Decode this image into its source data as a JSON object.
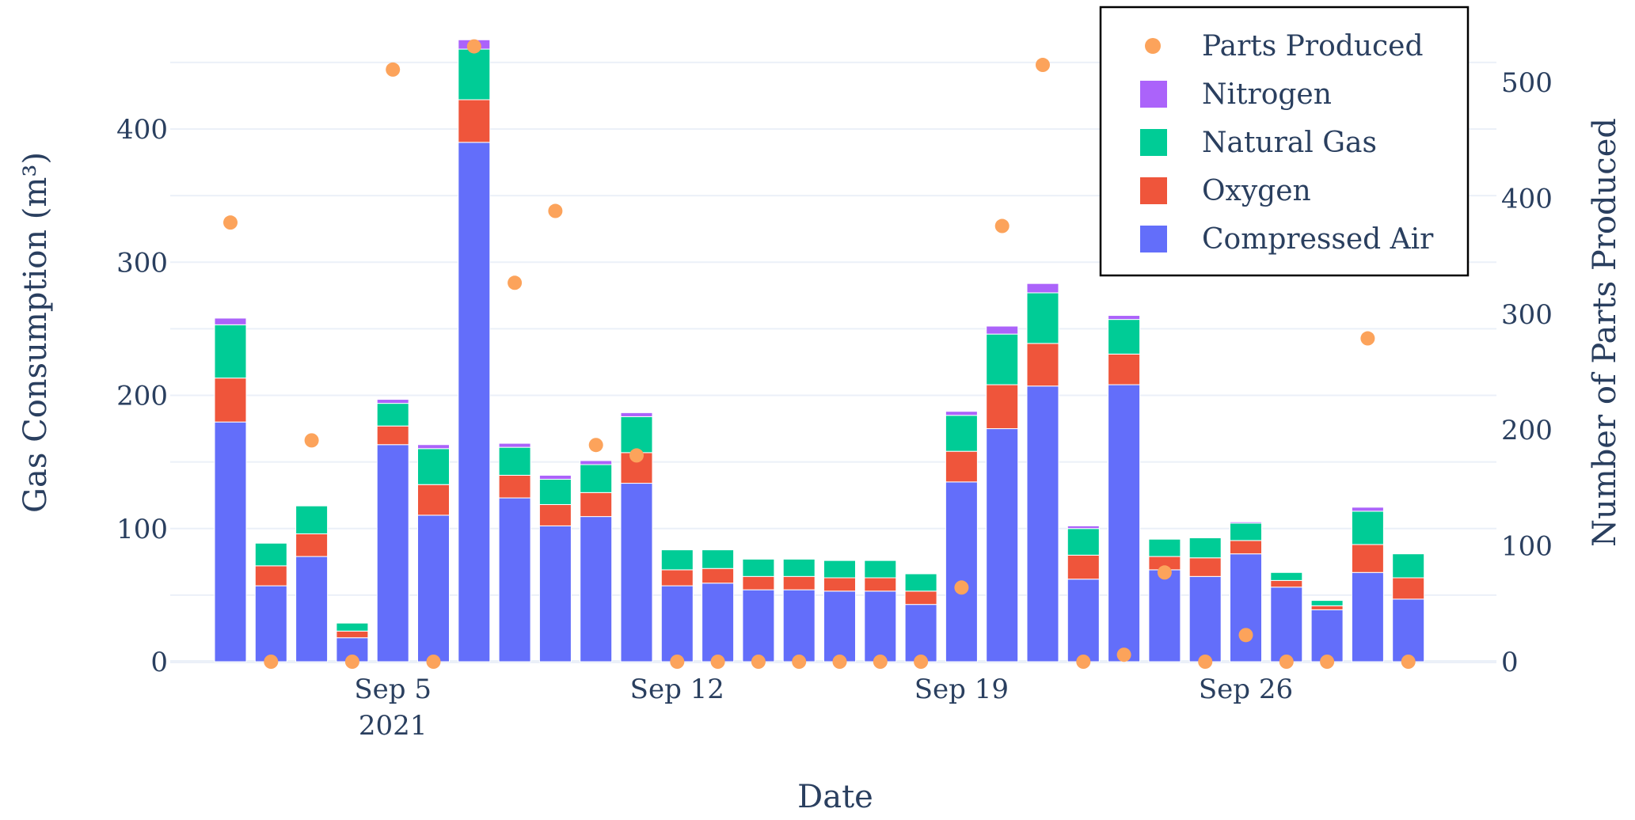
{
  "chart_data": {
    "type": "bar",
    "barmode": "stack",
    "xlabel": "Date",
    "ylabel": "Gas Consumption (m³)",
    "y2label": "Number of Parts Produced",
    "ylim": [
      0,
      470
    ],
    "y2lim": [
      0,
      550
    ],
    "yticks": [
      0,
      100,
      200,
      300,
      400
    ],
    "y2ticks": [
      0,
      100,
      200,
      300,
      400,
      500
    ],
    "x_tick_labels": [
      {
        "index": 4,
        "label": "Sep 5",
        "sublabel": "2021"
      },
      {
        "index": 11,
        "label": "Sep 12"
      },
      {
        "index": 18,
        "label": "Sep 19"
      },
      {
        "index": 25,
        "label": "Sep 26"
      }
    ],
    "categories": [
      "Sep 1",
      "Sep 2",
      "Sep 3",
      "Sep 4",
      "Sep 5",
      "Sep 6",
      "Sep 7",
      "Sep 8",
      "Sep 9",
      "Sep 10",
      "Sep 11",
      "Sep 12",
      "Sep 13",
      "Sep 14",
      "Sep 15",
      "Sep 16",
      "Sep 17",
      "Sep 18",
      "Sep 19",
      "Sep 20",
      "Sep 21",
      "Sep 22",
      "Sep 23",
      "Sep 24",
      "Sep 25",
      "Sep 26",
      "Sep 27",
      "Sep 28",
      "Sep 29",
      "Sep 30"
    ],
    "series": [
      {
        "name": "Compressed Air",
        "color": "#636efa",
        "values": [
          180,
          57,
          79,
          18,
          163,
          110,
          390,
          123,
          102,
          109,
          134,
          57,
          59,
          54,
          54,
          53,
          53,
          43,
          135,
          175,
          207,
          62,
          208,
          69,
          64,
          81,
          56,
          39,
          67,
          47
        ]
      },
      {
        "name": "Oxygen",
        "color": "#ef553b",
        "values": [
          33,
          15,
          17,
          5,
          14,
          23,
          32,
          17,
          16,
          18,
          23,
          12,
          11,
          10,
          10,
          10,
          10,
          10,
          23,
          33,
          32,
          18,
          23,
          10,
          14,
          10,
          5,
          3,
          21,
          16
        ]
      },
      {
        "name": "Natural Gas",
        "color": "#00cc96",
        "values": [
          40,
          17,
          21,
          6,
          17,
          27,
          38,
          21,
          19,
          21,
          27,
          15,
          14,
          13,
          13,
          13,
          13,
          13,
          27,
          38,
          38,
          20,
          26,
          13,
          15,
          13,
          6,
          4,
          25,
          18
        ]
      },
      {
        "name": "Nitrogen",
        "color": "#ab63fa",
        "values": [
          5,
          0,
          0,
          0,
          3,
          3,
          7,
          3,
          3,
          3,
          3,
          0,
          0,
          0,
          0,
          0,
          0,
          0,
          3,
          6,
          7,
          2,
          3,
          0,
          0,
          1,
          0,
          0,
          3,
          0
        ]
      }
    ],
    "scatter": {
      "name": "Parts Produced",
      "color": "#fca35b",
      "axis": "y2",
      "values": [
        379,
        0,
        191,
        0,
        511,
        0,
        531,
        327,
        389,
        187,
        178,
        0,
        0,
        0,
        0,
        0,
        0,
        0,
        64,
        376,
        515,
        0,
        6,
        77,
        0,
        23,
        0,
        0,
        279,
        0
      ]
    },
    "legend": {
      "position": "top-right",
      "items": [
        "Parts Produced",
        "Nitrogen",
        "Natural Gas",
        "Oxygen",
        "Compressed Air"
      ]
    }
  }
}
